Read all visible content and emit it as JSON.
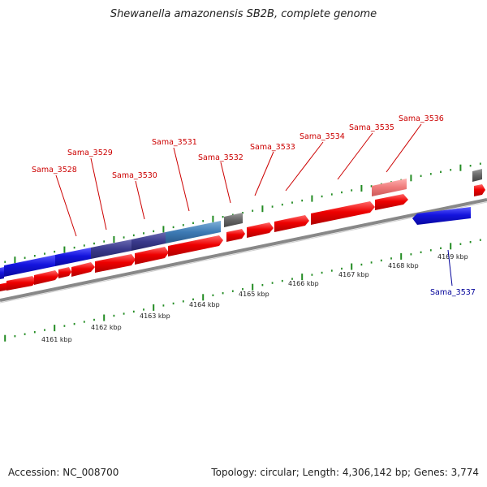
{
  "title": "Shewanella amazonensis SB2B, complete genome",
  "footer": {
    "accession": "Accession: NC_008700",
    "summary": "Topology: circular; Length: 4,306,142 bp; Genes: 3,774"
  },
  "colors": {
    "forward_cds": "#ee0000",
    "reverse_cds": "#1010dd",
    "pseudo": "#777777",
    "label_forward": "#cc0000",
    "label_reverse": "#000099",
    "tick": "#228b22",
    "backbone": "#888888"
  },
  "kbp_labels": [
    "4161 kbp",
    "4162 kbp",
    "4163 kbp",
    "4164 kbp",
    "4165 kbp",
    "4166 kbp",
    "4167 kbp",
    "4168 kbp",
    "4169 kbp"
  ],
  "gene_labels": [
    {
      "text": "Sama_3528",
      "strand": "forward"
    },
    {
      "text": "Sama_3529",
      "strand": "forward"
    },
    {
      "text": "Sama_3530",
      "strand": "forward"
    },
    {
      "text": "Sama_3531",
      "strand": "forward"
    },
    {
      "text": "Sama_3532",
      "strand": "forward"
    },
    {
      "text": "Sama_3533",
      "strand": "forward"
    },
    {
      "text": "Sama_3534",
      "strand": "forward"
    },
    {
      "text": "Sama_3535",
      "strand": "forward"
    },
    {
      "text": "Sama_3536",
      "strand": "forward"
    },
    {
      "text": "Sama_3537",
      "strand": "reverse"
    }
  ]
}
